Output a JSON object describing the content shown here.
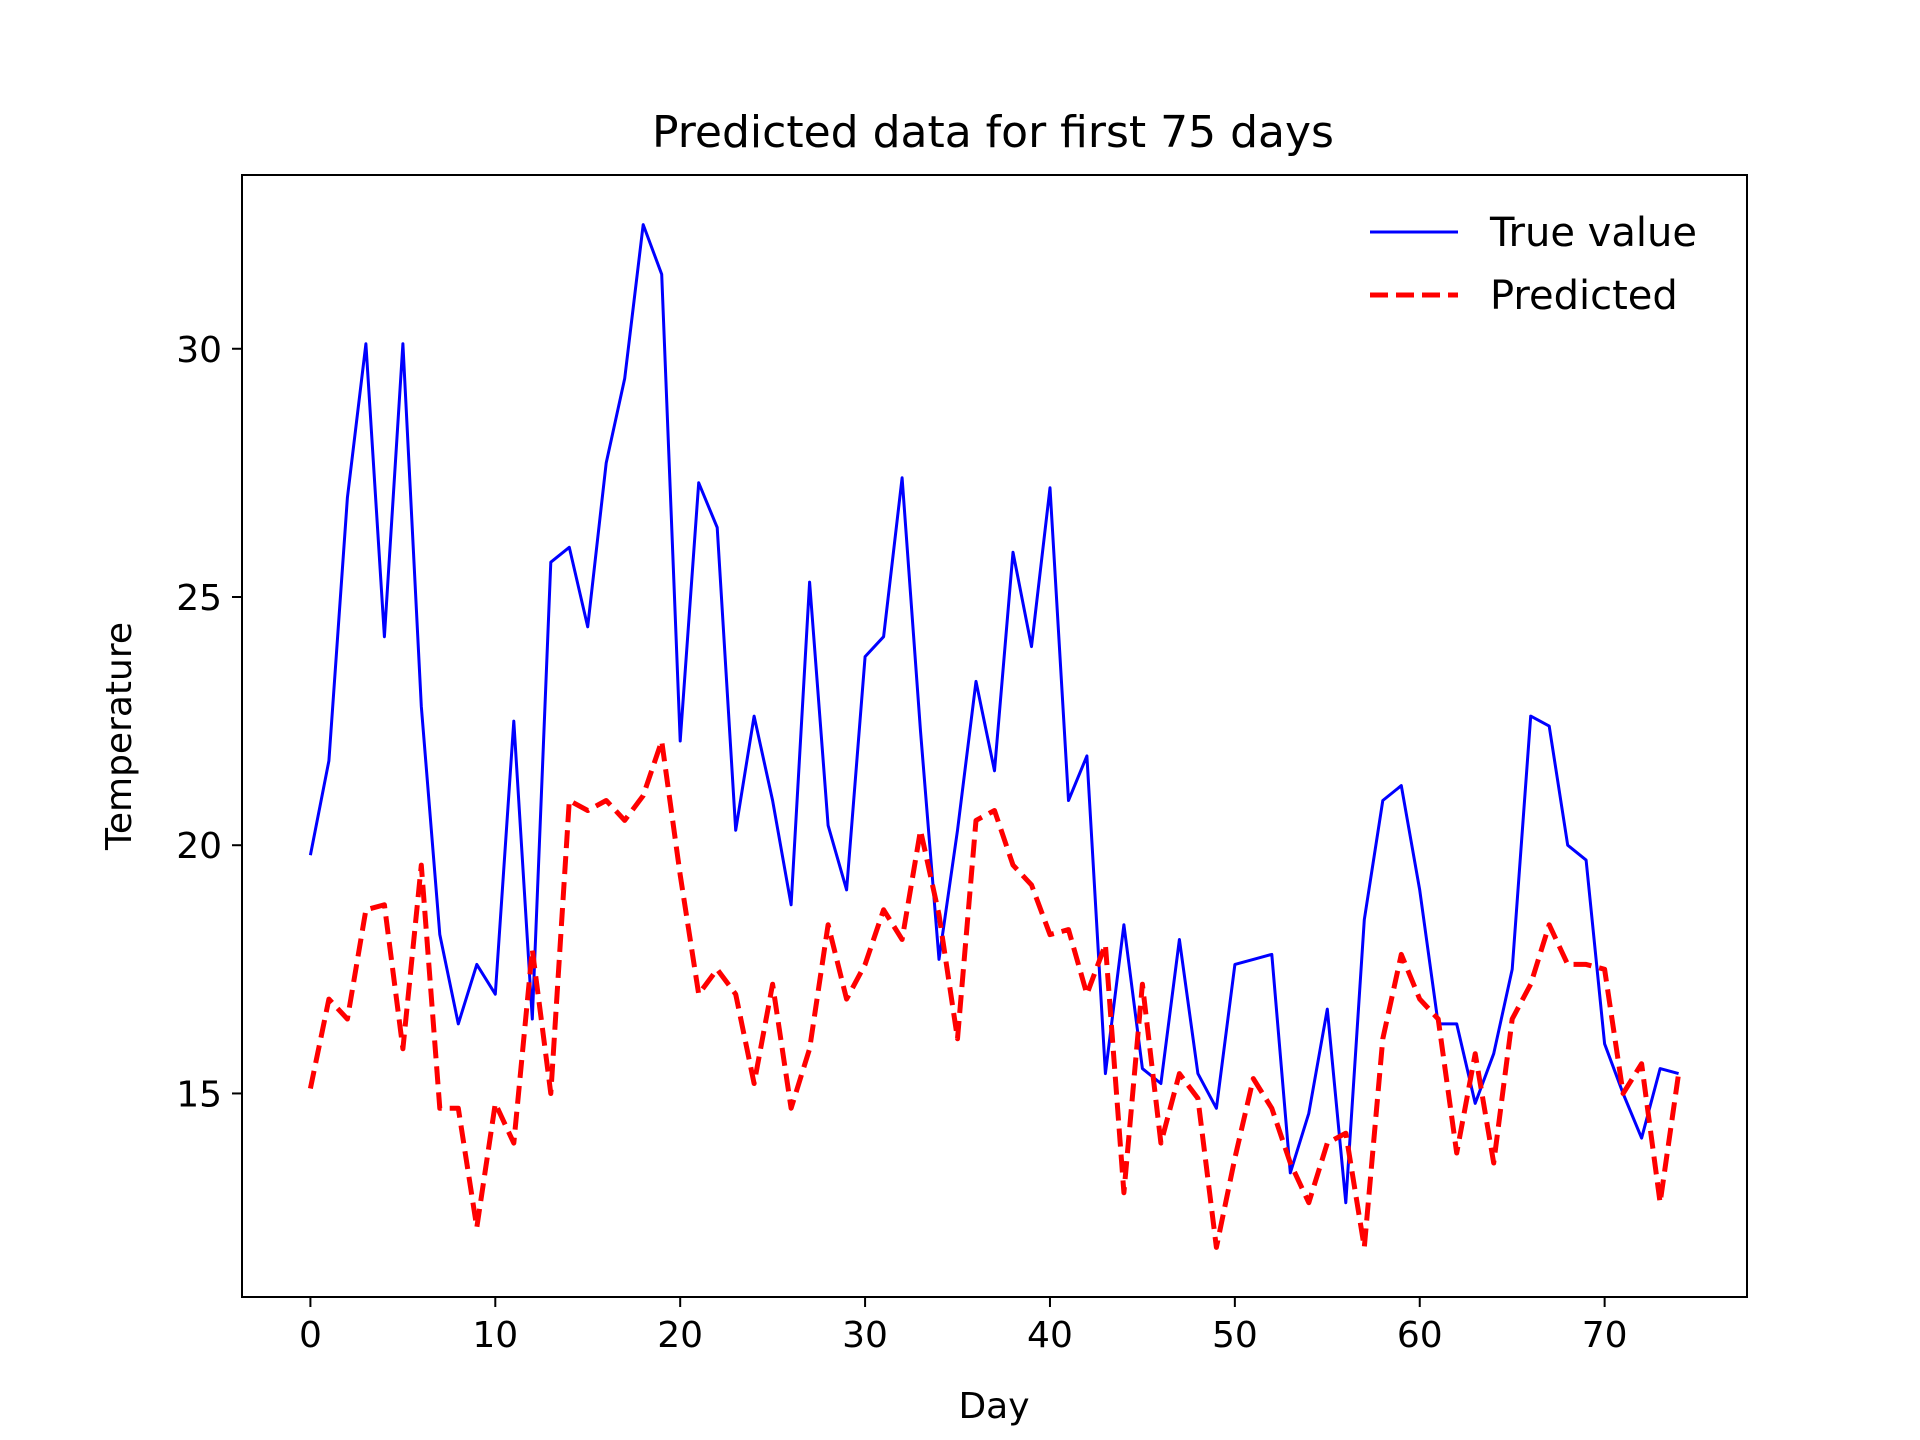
{
  "chart_data": {
    "type": "line",
    "title": "Predicted data for first 75 days",
    "xlabel": "Day",
    "ylabel": "Temperature",
    "xlim": [
      -3.7,
      77.7
    ],
    "ylim": [
      10.9,
      33.5
    ],
    "xticks": [
      0,
      10,
      20,
      30,
      40,
      50,
      60,
      70
    ],
    "yticks": [
      15,
      20,
      25,
      30
    ],
    "grid": false,
    "legend_position": "top-right",
    "x": [
      0,
      1,
      2,
      3,
      4,
      5,
      6,
      7,
      8,
      9,
      10,
      11,
      12,
      13,
      14,
      15,
      16,
      17,
      18,
      19,
      20,
      21,
      22,
      23,
      24,
      25,
      26,
      27,
      28,
      29,
      30,
      31,
      32,
      33,
      34,
      35,
      36,
      37,
      38,
      39,
      40,
      41,
      42,
      43,
      44,
      45,
      46,
      47,
      48,
      49,
      50,
      51,
      52,
      53,
      54,
      55,
      56,
      57,
      58,
      59,
      60,
      61,
      62,
      63,
      64,
      65,
      66,
      67,
      68,
      69,
      70,
      71,
      72,
      73,
      74
    ],
    "series": [
      {
        "name": "True value",
        "color": "#0000ff",
        "style": "solid",
        "values": [
          19.8,
          21.7,
          27.0,
          30.1,
          24.2,
          30.1,
          22.8,
          18.2,
          16.4,
          17.6,
          17.0,
          22.5,
          16.5,
          25.7,
          26.0,
          24.4,
          27.7,
          29.4,
          32.5,
          31.5,
          22.1,
          27.3,
          26.4,
          20.3,
          22.6,
          20.9,
          18.8,
          25.3,
          20.4,
          19.1,
          23.8,
          24.2,
          27.4,
          22.3,
          17.7,
          20.3,
          23.3,
          21.5,
          25.9,
          24.0,
          27.2,
          20.9,
          21.8,
          15.4,
          18.4,
          15.5,
          15.2,
          18.1,
          15.4,
          14.7,
          17.6,
          17.7,
          17.8,
          13.4,
          14.6,
          16.7,
          12.8,
          18.5,
          20.9,
          21.2,
          19.1,
          16.4,
          16.4,
          14.8,
          15.8,
          17.5,
          22.6,
          22.4,
          20.0,
          19.7,
          16.0,
          15.0,
          14.1,
          15.5,
          15.4
        ]
      },
      {
        "name": "Predicted",
        "color": "#ff0000",
        "style": "dashed",
        "values": [
          15.1,
          16.9,
          16.5,
          18.7,
          18.8,
          15.9,
          19.6,
          14.7,
          14.7,
          12.3,
          14.8,
          14.0,
          17.9,
          15.0,
          20.9,
          20.7,
          20.9,
          20.5,
          21.0,
          22.1,
          19.4,
          17.0,
          17.5,
          17.0,
          15.2,
          17.2,
          14.7,
          15.9,
          18.4,
          16.9,
          17.6,
          18.7,
          18.1,
          20.3,
          18.6,
          16.1,
          20.5,
          20.7,
          19.6,
          19.2,
          18.2,
          18.3,
          17.0,
          18.0,
          13.0,
          17.2,
          14.0,
          15.4,
          14.9,
          11.9,
          13.7,
          15.3,
          14.7,
          13.6,
          12.8,
          14.0,
          14.2,
          11.9,
          16.1,
          17.8,
          16.9,
          16.5,
          13.8,
          15.8,
          13.6,
          16.5,
          17.2,
          18.4,
          17.6,
          17.6,
          17.5,
          15.0,
          15.6,
          12.8,
          15.4
        ]
      }
    ]
  }
}
